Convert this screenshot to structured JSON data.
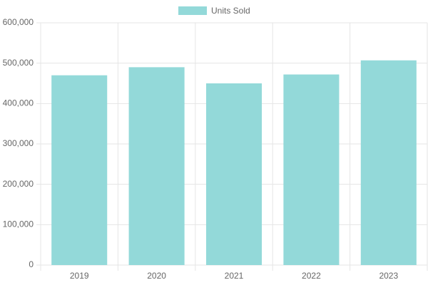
{
  "chart_data": {
    "type": "bar",
    "categories": [
      "2019",
      "2020",
      "2021",
      "2022",
      "2023"
    ],
    "series": [
      {
        "name": "Units Sold",
        "color": "#93d9d9",
        "values": [
          470000,
          490000,
          450000,
          472000,
          507000
        ]
      }
    ],
    "ylim": [
      0,
      600000
    ],
    "yticks": [
      0,
      {
        "value": 100000,
        "label": "100,000"
      },
      {
        "value": 200000,
        "label": "200,000"
      },
      {
        "value": 300000,
        "label": "300,000"
      },
      {
        "value": 400000,
        "label": "400,000"
      },
      {
        "value": 500000,
        "label": "500,000"
      },
      {
        "value": 600000,
        "label": "600,000"
      }
    ],
    "grid": true,
    "legend": "top"
  }
}
